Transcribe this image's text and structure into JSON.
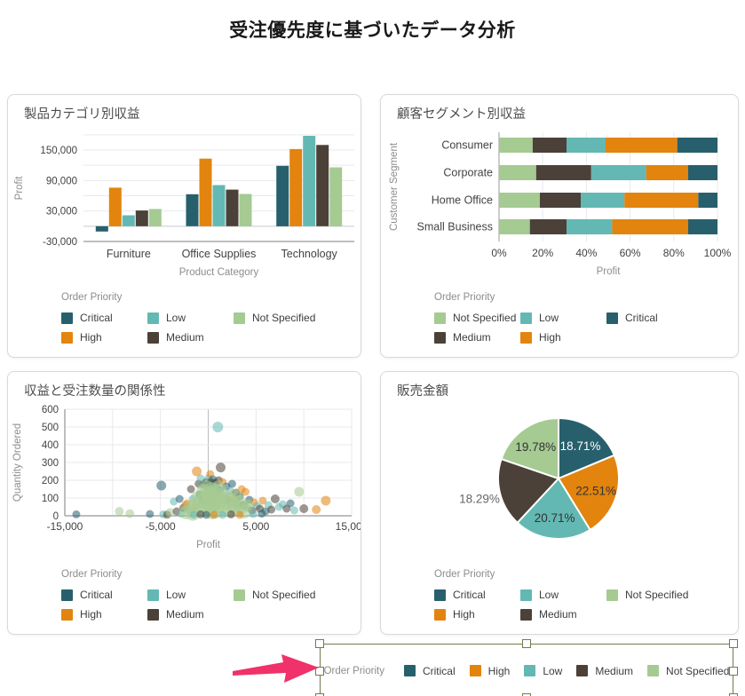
{
  "title": "受注優先度に基づいたデータ分析",
  "legend_title": "Order Priority",
  "priorities": [
    "Critical",
    "High",
    "Low",
    "Medium",
    "Not Specified"
  ],
  "priority_colors": {
    "Critical": "#27606c",
    "High": "#e2840e",
    "Low": "#63b8b3",
    "Medium": "#4b4139",
    "Not Specified": "#a5ca92"
  },
  "cards": [
    {
      "title": "製品カテゴリ別収益",
      "legend_columns": [
        [
          "Critical",
          "High"
        ],
        [
          "Low",
          "Medium"
        ],
        [
          "Not Specified"
        ]
      ]
    },
    {
      "title": "顧客セグメント別収益",
      "legend_columns": [
        [
          "Not Specified",
          "Medium"
        ],
        [
          "Low",
          "High"
        ],
        [
          "Critical"
        ]
      ]
    },
    {
      "title": "収益と受注数量の関係性",
      "legend_columns": [
        [
          "Critical",
          "High"
        ],
        [
          "Low",
          "Medium"
        ],
        [
          "Not Specified"
        ]
      ]
    },
    {
      "title": "販売金額",
      "legend_columns": [
        [
          "Critical",
          "High"
        ],
        [
          "Low",
          "Medium"
        ],
        [
          "Not Specified"
        ]
      ]
    }
  ],
  "chart_data": [
    {
      "type": "bar",
      "title": "製品カテゴリ別収益",
      "xlabel": "Product Category",
      "ylabel": "Profit",
      "categories": [
        "Furniture",
        "Office Supplies",
        "Technology"
      ],
      "series": [
        {
          "name": "Critical",
          "values": [
            -10500,
            63000,
            119000
          ]
        },
        {
          "name": "High",
          "values": [
            76000,
            133000,
            152000
          ]
        },
        {
          "name": "Low",
          "values": [
            21500,
            81000,
            178000
          ]
        },
        {
          "name": "Medium",
          "values": [
            31000,
            72000,
            160000
          ]
        },
        {
          "name": "Not Specified",
          "values": [
            34000,
            63500,
            116000
          ]
        }
      ],
      "ylim": [
        -30000,
        185000
      ],
      "yticks": [
        {
          "v": -30000,
          "label": "-30,000"
        },
        {
          "v": 30000,
          "label": "30,000"
        },
        {
          "v": 90000,
          "label": "90,000"
        },
        {
          "v": 150000,
          "label": "150,000"
        }
      ],
      "grid_step": 30000,
      "legend_position": "bottom"
    },
    {
      "type": "stacked_bar_horizontal_percent",
      "title": "顧客セグメント別収益",
      "xlabel": "Profit",
      "ylabel": "Customer Segment",
      "categories": [
        "Consumer",
        "Corporate",
        "Home Office",
        "Small Business"
      ],
      "stack_order": [
        "Not Specified",
        "Medium",
        "Low",
        "High",
        "Critical"
      ],
      "series": [
        {
          "name": "Not Specified",
          "values": [
            15.4,
            17.0,
            18.7,
            14.1
          ]
        },
        {
          "name": "Medium",
          "values": [
            15.5,
            25.2,
            18.7,
            16.8
          ]
        },
        {
          "name": "Low",
          "values": [
            17.9,
            25.1,
            20.0,
            20.9
          ]
        },
        {
          "name": "High",
          "values": [
            32.8,
            19.2,
            33.8,
            34.8
          ]
        },
        {
          "name": "Critical",
          "values": [
            18.4,
            13.5,
            8.8,
            13.4
          ]
        }
      ],
      "xlim": [
        0,
        100
      ],
      "xticks": [
        {
          "v": 0,
          "label": "0%"
        },
        {
          "v": 20,
          "label": "20%"
        },
        {
          "v": 40,
          "label": "40%"
        },
        {
          "v": 60,
          "label": "60%"
        },
        {
          "v": 80,
          "label": "80%"
        },
        {
          "v": 100,
          "label": "100%"
        }
      ],
      "legend_position": "bottom"
    },
    {
      "type": "scatter",
      "title": "収益と受注数量の関係性",
      "xlabel": "Profit",
      "ylabel": "Quantity Ordered",
      "xlim": [
        -15000,
        15000
      ],
      "ylim": [
        0,
        600
      ],
      "xticks": [
        {
          "v": -15000,
          "label": "-15,000"
        },
        {
          "v": -5000,
          "label": "-5,000"
        },
        {
          "v": 5000,
          "label": "5,000"
        },
        {
          "v": 15000,
          "label": "15,000"
        }
      ],
      "yticks": [
        {
          "v": 0,
          "label": "0"
        },
        {
          "v": 100,
          "label": "100"
        },
        {
          "v": 200,
          "label": "200"
        },
        {
          "v": 300,
          "label": "300"
        },
        {
          "v": 400,
          "label": "400"
        },
        {
          "v": 500,
          "label": "500"
        },
        {
          "v": 600,
          "label": "600"
        }
      ],
      "series_key": {
        "C": "Critical",
        "H": "High",
        "L": "Low",
        "M": "Medium",
        "N": "Not Specified"
      },
      "points": [
        [
          -13800,
          8,
          "C"
        ],
        [
          -9300,
          25,
          "N",
          5
        ],
        [
          -8200,
          12,
          "N",
          5
        ],
        [
          -6100,
          10,
          "C"
        ],
        [
          -4900,
          170,
          "C",
          5.5
        ],
        [
          -4700,
          8,
          "L"
        ],
        [
          -4300,
          6,
          "M"
        ],
        [
          -4000,
          18,
          "N",
          5
        ],
        [
          -3600,
          80,
          "L"
        ],
        [
          -3300,
          25,
          "M"
        ],
        [
          -3000,
          95,
          "C"
        ],
        [
          -2800,
          12,
          "L"
        ],
        [
          -2600,
          45,
          "M"
        ],
        [
          -2400,
          60,
          "H"
        ],
        [
          -2200,
          70,
          "H"
        ],
        [
          -2000,
          30,
          "L"
        ],
        [
          -1800,
          150,
          "M"
        ],
        [
          -1600,
          95,
          "L"
        ],
        [
          -1400,
          55,
          "H"
        ],
        [
          -1200,
          250,
          "H",
          5.5
        ],
        [
          -1000,
          180,
          "M"
        ],
        [
          -900,
          120,
          "C"
        ],
        [
          -800,
          210,
          "L"
        ],
        [
          -600,
          85,
          "M"
        ],
        [
          -500,
          175,
          "C"
        ],
        [
          -300,
          120,
          "L"
        ],
        [
          -200,
          190,
          "M"
        ],
        [
          -100,
          140,
          "H"
        ],
        [
          0,
          210,
          "L"
        ],
        [
          100,
          170,
          "C"
        ],
        [
          200,
          235,
          "H"
        ],
        [
          300,
          190,
          "M"
        ],
        [
          400,
          150,
          "L"
        ],
        [
          500,
          205,
          "C"
        ],
        [
          700,
          185,
          "M"
        ],
        [
          800,
          120,
          "H"
        ],
        [
          900,
          160,
          "L"
        ],
        [
          1000,
          500,
          "L",
          6
        ],
        [
          1100,
          200,
          "M"
        ],
        [
          1200,
          145,
          "C"
        ],
        [
          1300,
          272,
          "M",
          5.5
        ],
        [
          1500,
          190,
          "H"
        ],
        [
          1700,
          110,
          "L"
        ],
        [
          1900,
          165,
          "C"
        ],
        [
          2100,
          85,
          "M"
        ],
        [
          2300,
          140,
          "L"
        ],
        [
          2500,
          180,
          "C"
        ],
        [
          2700,
          95,
          "H"
        ],
        [
          2900,
          130,
          "M"
        ],
        [
          3100,
          70,
          "L"
        ],
        [
          3300,
          110,
          "C"
        ],
        [
          3500,
          150,
          "H"
        ],
        [
          3700,
          60,
          "M"
        ],
        [
          3900,
          135,
          "H"
        ],
        [
          4100,
          45,
          "L"
        ],
        [
          4300,
          90,
          "C"
        ],
        [
          4600,
          30,
          "M"
        ],
        [
          4800,
          75,
          "H"
        ],
        [
          5100,
          55,
          "L"
        ],
        [
          5400,
          40,
          "M"
        ],
        [
          5700,
          85,
          "H"
        ],
        [
          6000,
          25,
          "C"
        ],
        [
          6300,
          60,
          "L"
        ],
        [
          6600,
          35,
          "M"
        ],
        [
          7000,
          95,
          "M",
          5
        ],
        [
          7400,
          50,
          "L"
        ],
        [
          7800,
          65,
          "L"
        ],
        [
          8200,
          40,
          "M"
        ],
        [
          8600,
          70,
          "C"
        ],
        [
          9000,
          30,
          "L"
        ],
        [
          9500,
          135,
          "N",
          5.5
        ],
        [
          10000,
          40,
          "M",
          5
        ],
        [
          11300,
          35,
          "H",
          5
        ],
        [
          12300,
          85,
          "H",
          5.5
        ],
        [
          -2300,
          20,
          "N"
        ],
        [
          -1900,
          45,
          "N"
        ],
        [
          -1600,
          12,
          "N"
        ],
        [
          -1300,
          60,
          "N"
        ],
        [
          -1100,
          100,
          "N"
        ],
        [
          -900,
          35,
          "N"
        ],
        [
          -700,
          80,
          "N"
        ],
        [
          -500,
          140,
          "N"
        ],
        [
          -400,
          55,
          "N"
        ],
        [
          -300,
          100,
          "N"
        ],
        [
          -200,
          160,
          "N"
        ],
        [
          -100,
          70,
          "N"
        ],
        [
          0,
          120,
          "N"
        ],
        [
          100,
          40,
          "N"
        ],
        [
          200,
          90,
          "N"
        ],
        [
          300,
          150,
          "N"
        ],
        [
          400,
          20,
          "N"
        ],
        [
          500,
          110,
          "N"
        ],
        [
          600,
          65,
          "N"
        ],
        [
          700,
          135,
          "N"
        ],
        [
          800,
          25,
          "N"
        ],
        [
          900,
          95,
          "N"
        ],
        [
          1000,
          55,
          "N"
        ],
        [
          1100,
          160,
          "N"
        ],
        [
          1200,
          85,
          "N"
        ],
        [
          1400,
          120,
          "N"
        ],
        [
          1600,
          45,
          "N"
        ],
        [
          1800,
          100,
          "N"
        ],
        [
          2000,
          70,
          "N"
        ],
        [
          2200,
          30,
          "N"
        ],
        [
          2400,
          90,
          "N"
        ],
        [
          2600,
          55,
          "N"
        ],
        [
          2800,
          110,
          "N"
        ],
        [
          3000,
          35,
          "N"
        ],
        [
          3200,
          75,
          "N"
        ],
        [
          3500,
          50,
          "N"
        ],
        [
          3800,
          25,
          "N"
        ],
        [
          4200,
          60,
          "N",
          6
        ],
        [
          -1500,
          5,
          "L"
        ],
        [
          -800,
          8,
          "M"
        ],
        [
          -200,
          5,
          "C"
        ],
        [
          600,
          6,
          "H"
        ],
        [
          1500,
          5,
          "L"
        ],
        [
          2400,
          8,
          "M"
        ],
        [
          3300,
          5,
          "H"
        ],
        [
          4700,
          10,
          "L"
        ],
        [
          5600,
          12,
          "C"
        ]
      ],
      "legend_position": "bottom"
    },
    {
      "type": "pie",
      "title": "販売金額",
      "slices": [
        {
          "name": "Critical",
          "value": 18.71,
          "label": "18.71%",
          "label_pos": "inside",
          "label_color": "#ffffff"
        },
        {
          "name": "High",
          "value": 22.51,
          "label": "22.51%",
          "label_pos": "inside",
          "label_color": "#333333"
        },
        {
          "name": "Low",
          "value": 20.71,
          "label": "20.71%",
          "label_pos": "inside",
          "label_color": "#333333"
        },
        {
          "name": "Medium",
          "value": 18.29,
          "label": "18.29%",
          "label_pos": "outside",
          "label_color": "#666666"
        },
        {
          "name": "Not Specified",
          "value": 19.78,
          "label": "19.78%",
          "label_pos": "inside",
          "label_color": "#333333"
        }
      ],
      "start_angle": "top",
      "direction": "clockwise",
      "legend_position": "bottom"
    }
  ],
  "bottom_widget": {
    "legend_title": "Order Priority",
    "items": [
      "Critical",
      "High",
      "Low",
      "Medium",
      "Not Specified"
    ],
    "selection_color": "#6f7d4d",
    "arrow_color": "#f0316a"
  }
}
